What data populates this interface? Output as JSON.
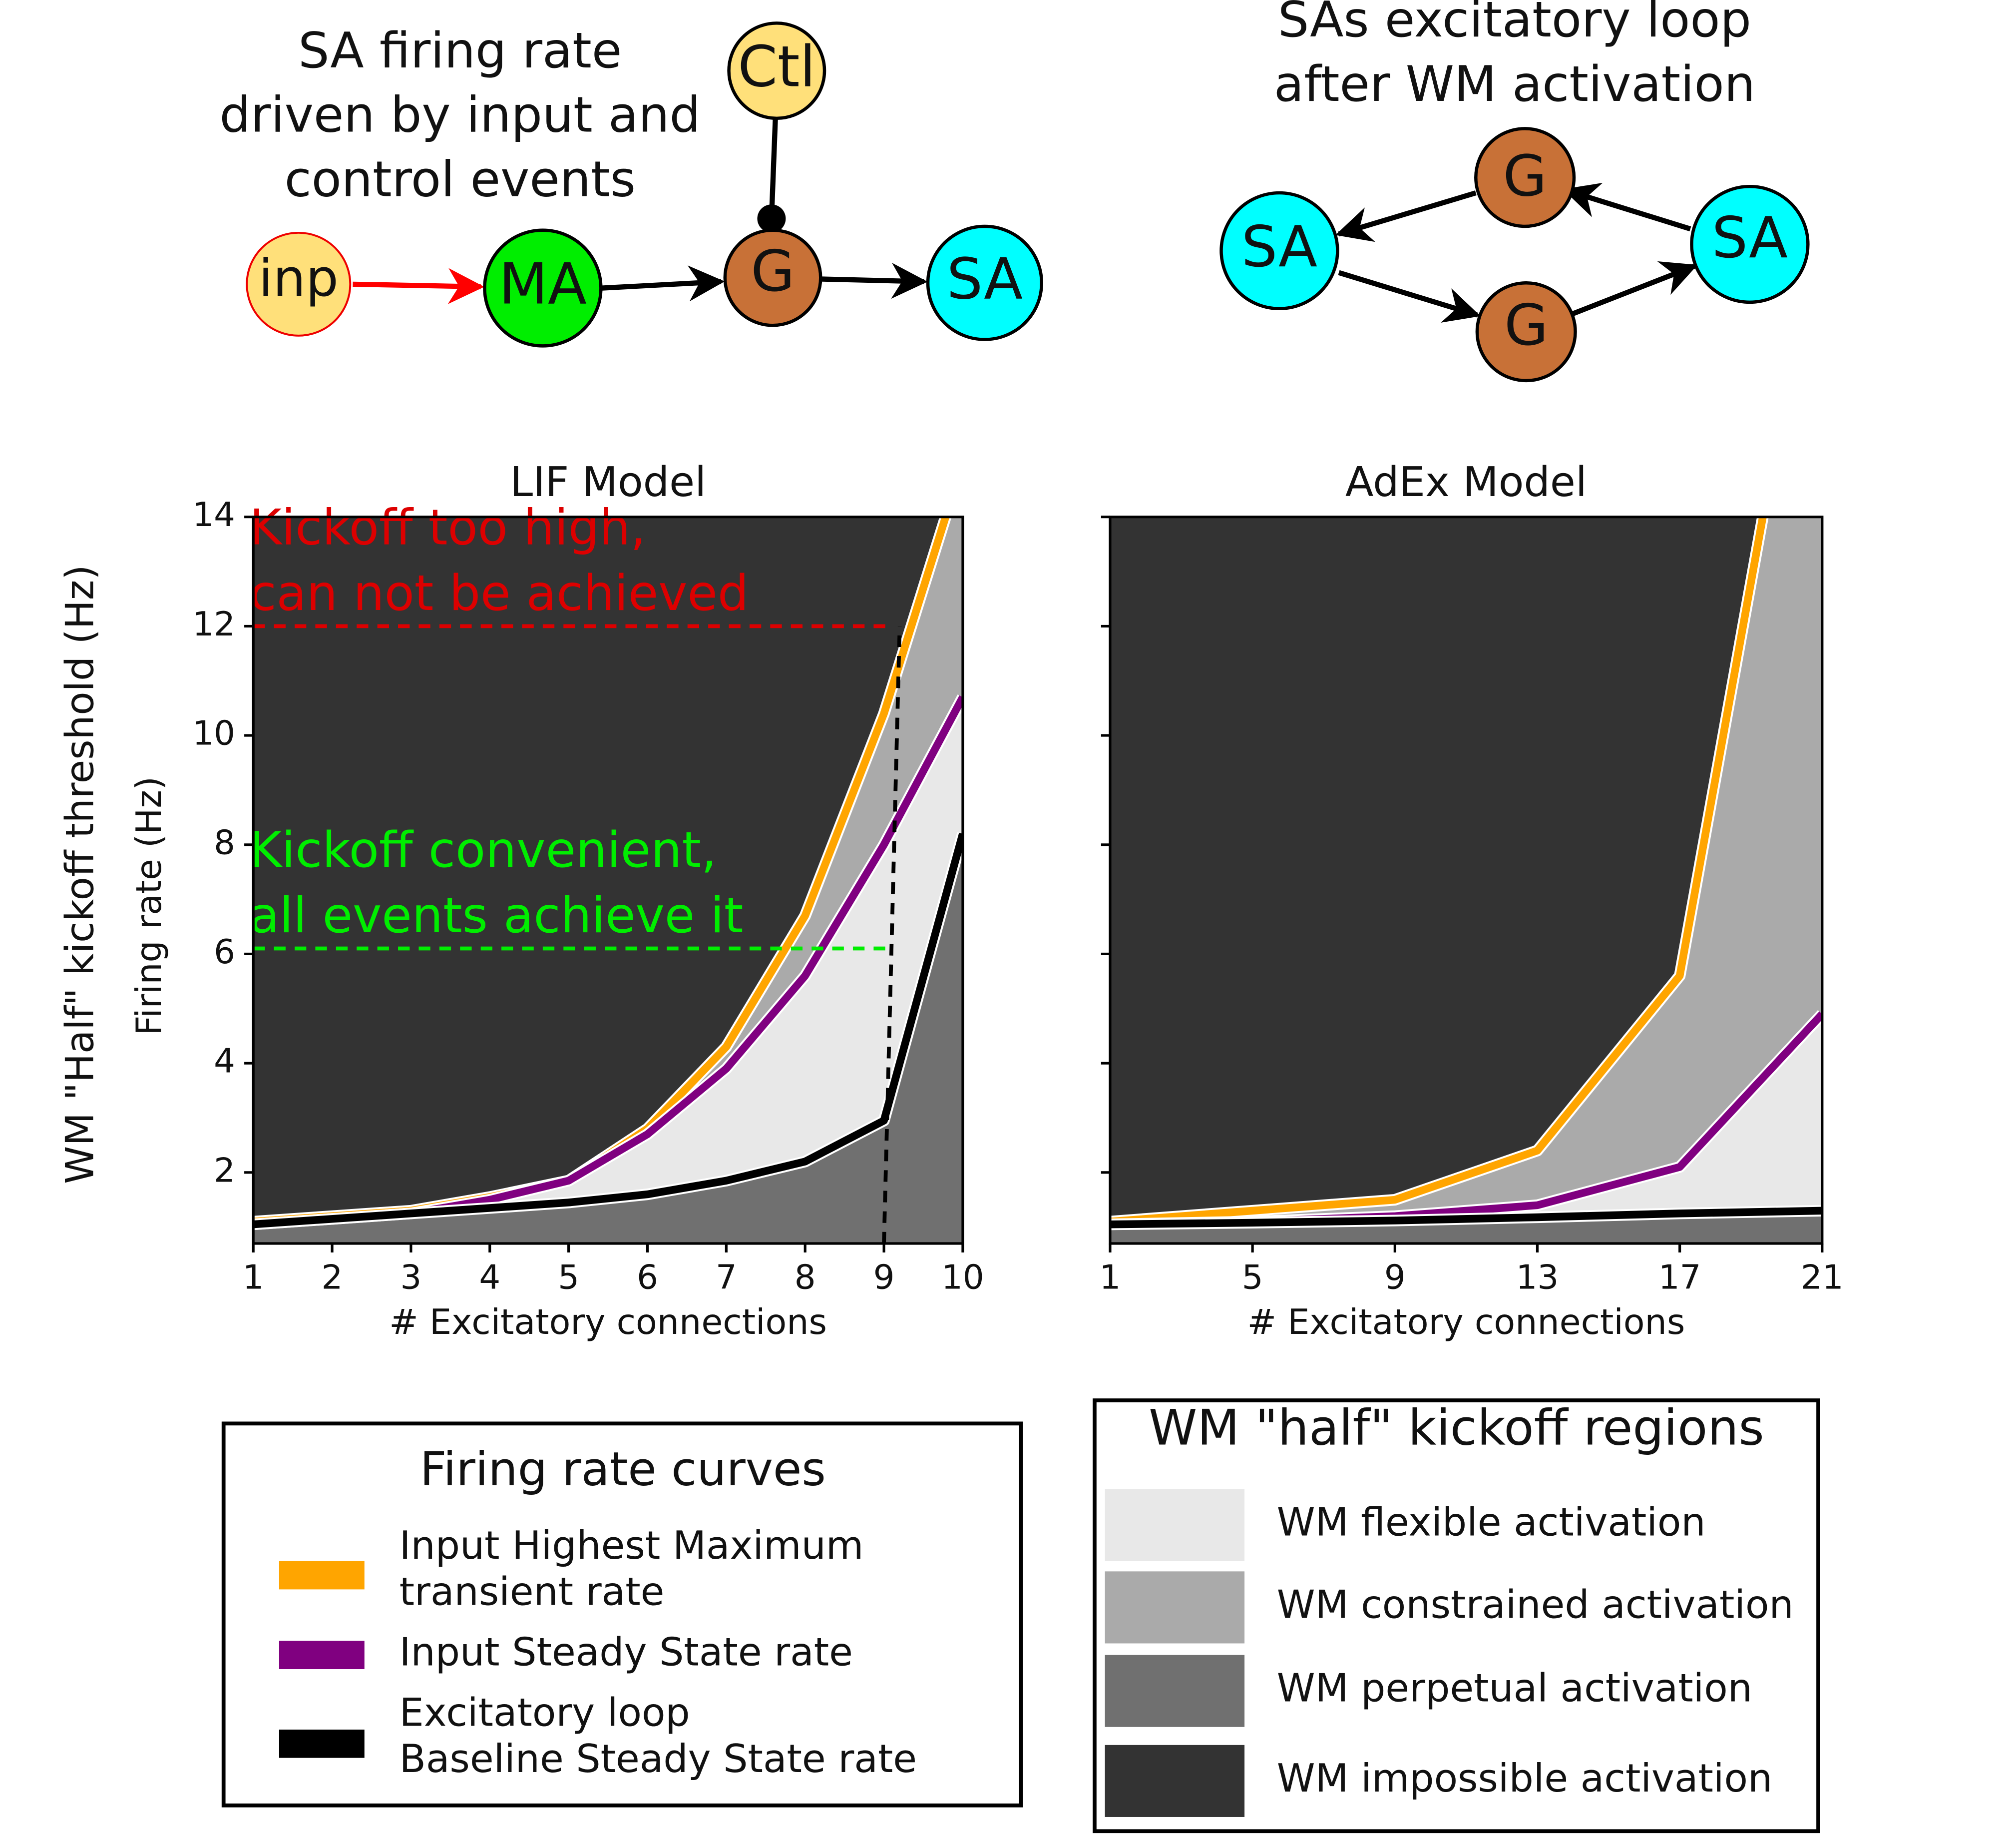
{
  "diagrams": [
    {
      "title_lines": [
        "SA firing rate",
        "driven by input and",
        "control events"
      ],
      "nodes": [
        "inp",
        "MA",
        "G",
        "Ctl",
        "SA"
      ]
    },
    {
      "title_lines": [
        "SAs excitatory loop",
        "after WM activation"
      ],
      "nodes": [
        "SA",
        "G",
        "G",
        "SA"
      ]
    }
  ],
  "y_label": "WM \"Half\" kickoff threshold (Hz)",
  "chart_data": [
    {
      "type": "line",
      "title": "LIF Model",
      "x": [
        1,
        2,
        3,
        4,
        5,
        6,
        7,
        8,
        9,
        10
      ],
      "xlim": [
        1,
        10
      ],
      "xticks": [
        1,
        2,
        3,
        4,
        5,
        6,
        7,
        8,
        9,
        10
      ],
      "ylim": [
        0.7,
        14
      ],
      "yticks": [
        2,
        4,
        6,
        8,
        10,
        12,
        14
      ],
      "xlabel": "# Excitatory connections",
      "ylabel": "Firing rate (Hz)",
      "series": [
        {
          "color": "#ffa500",
          "values": [
            1.1,
            1.2,
            1.3,
            1.55,
            1.85,
            2.8,
            4.3,
            6.7,
            10.4,
            15
          ]
        },
        {
          "color": "#800080",
          "values": [
            1.05,
            1.15,
            1.25,
            1.5,
            1.85,
            2.7,
            3.9,
            5.6,
            8.0,
            10.7
          ]
        },
        {
          "color": "#000000",
          "values": [
            1.05,
            1.15,
            1.25,
            1.35,
            1.45,
            1.6,
            1.85,
            2.2,
            2.95,
            8.2
          ]
        }
      ],
      "regions": [
        {
          "name": "WM flexible activation",
          "color": "#e8e8e8"
        },
        {
          "name": "WM constrained activation",
          "color": "#aaaaaa"
        },
        {
          "name": "WM perpetual activation",
          "color": "#707070"
        },
        {
          "name": "WM impossible activation",
          "color": "#333333"
        }
      ],
      "annotations": [
        {
          "lines": [
            "Kickoff too high,",
            "can not be achieved"
          ],
          "color": "#dd0000",
          "y": 12,
          "x_end": 9.1
        },
        {
          "lines": [
            "Kickoff convenient,",
            "all events achieve it"
          ],
          "color": "#00ee00",
          "y": 6.1,
          "x_end": 9.1
        }
      ],
      "vline": {
        "x": [
          9,
          9.2
        ],
        "y": 12
      }
    },
    {
      "type": "line",
      "title": "AdEx Model",
      "x": [
        1,
        5,
        9,
        13,
        17,
        21
      ],
      "xlim": [
        1,
        21
      ],
      "xticks": [
        1,
        5,
        9,
        13,
        17,
        21
      ],
      "ylim": [
        0.7,
        14
      ],
      "yticks": [
        2,
        4,
        6,
        8,
        10,
        12,
        14
      ],
      "ytick_labels": false,
      "xlabel": "# Excitatory connections",
      "series": [
        {
          "color": "#ffa500",
          "values": [
            1.1,
            1.3,
            1.5,
            2.4,
            5.6,
            20
          ]
        },
        {
          "color": "#800080",
          "values": [
            1.05,
            1.1,
            1.2,
            1.4,
            2.1,
            4.9
          ]
        },
        {
          "color": "#000000",
          "values": [
            1.05,
            1.08,
            1.12,
            1.18,
            1.25,
            1.3
          ]
        }
      ]
    }
  ],
  "legends": {
    "curves": {
      "title": "Firing rate curves",
      "entries": [
        {
          "lines": [
            "Input Highest Maximum",
            "transient rate"
          ]
        },
        {
          "lines": [
            "Input Steady State rate"
          ]
        },
        {
          "lines": [
            "Excitatory loop",
            "Baseline Steady State rate"
          ]
        }
      ]
    },
    "regions": {
      "title": "WM \"half\" kickoff regions"
    }
  }
}
